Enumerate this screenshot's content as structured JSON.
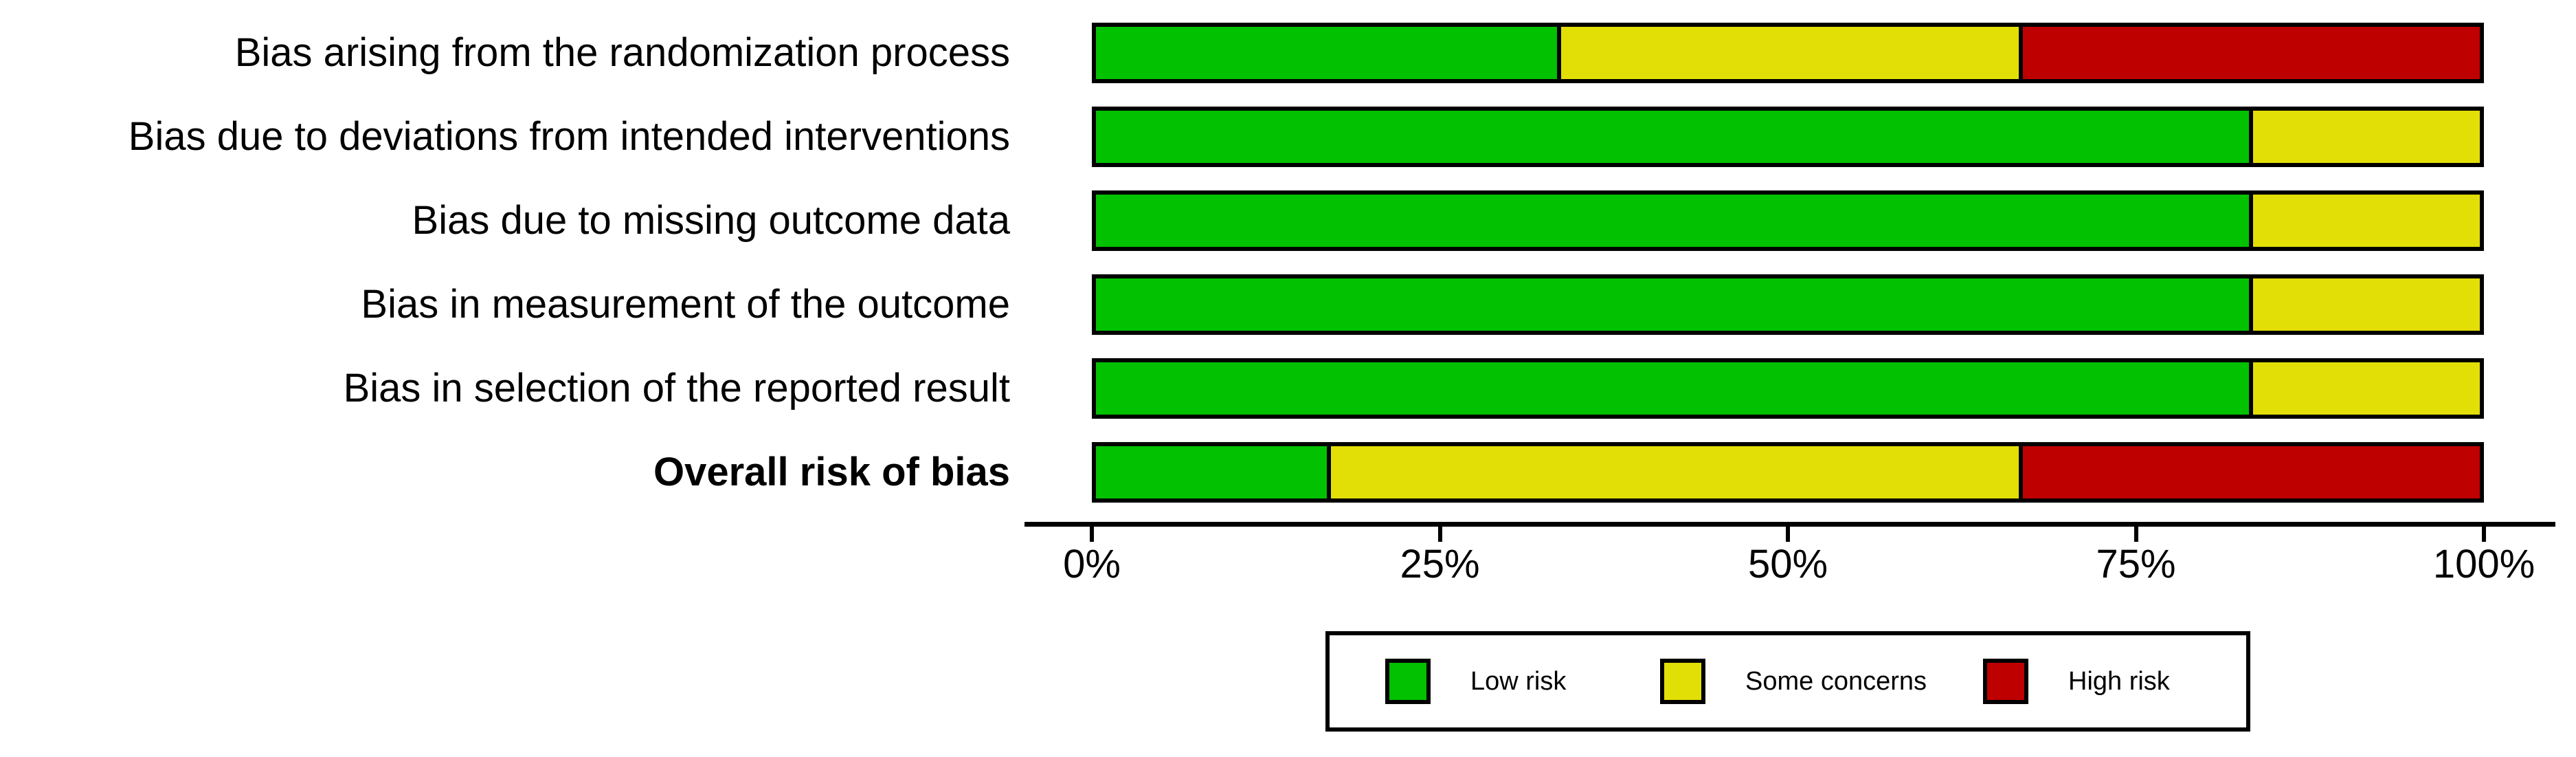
{
  "chart_data": {
    "type": "bar",
    "orientation": "horizontal",
    "stacked": true,
    "title": "",
    "xlabel": "",
    "ylabel": "",
    "categories": [
      "Bias arising from the randomization process",
      "Bias due to deviations from intended interventions",
      "Bias due to missing outcome data",
      "Bias in measurement of the outcome",
      "Bias in selection of the reported result",
      "Overall risk of bias"
    ],
    "category_bold": [
      false,
      false,
      false,
      false,
      false,
      true
    ],
    "series": [
      {
        "name": "Low risk",
        "color": "#02C100",
        "values": [
          33.33,
          83.33,
          83.33,
          83.33,
          83.33,
          16.67
        ]
      },
      {
        "name": "Some concerns",
        "color": "#E2DF07",
        "values": [
          33.33,
          16.67,
          16.67,
          16.67,
          16.67,
          50.0
        ]
      },
      {
        "name": "High risk",
        "color": "#BF0000",
        "values": [
          33.34,
          0,
          0,
          0,
          0,
          33.33
        ]
      }
    ],
    "xlim": [
      0,
      100
    ],
    "x_ticks": [
      "0%",
      "25%",
      "50%",
      "75%",
      "100%"
    ],
    "x_tick_values": [
      0,
      25,
      50,
      75,
      100
    ],
    "grid": false,
    "legend_position": "bottom",
    "bar_border_color": "#000000",
    "axis_color": "#000000",
    "background": "#FFFFFF"
  }
}
